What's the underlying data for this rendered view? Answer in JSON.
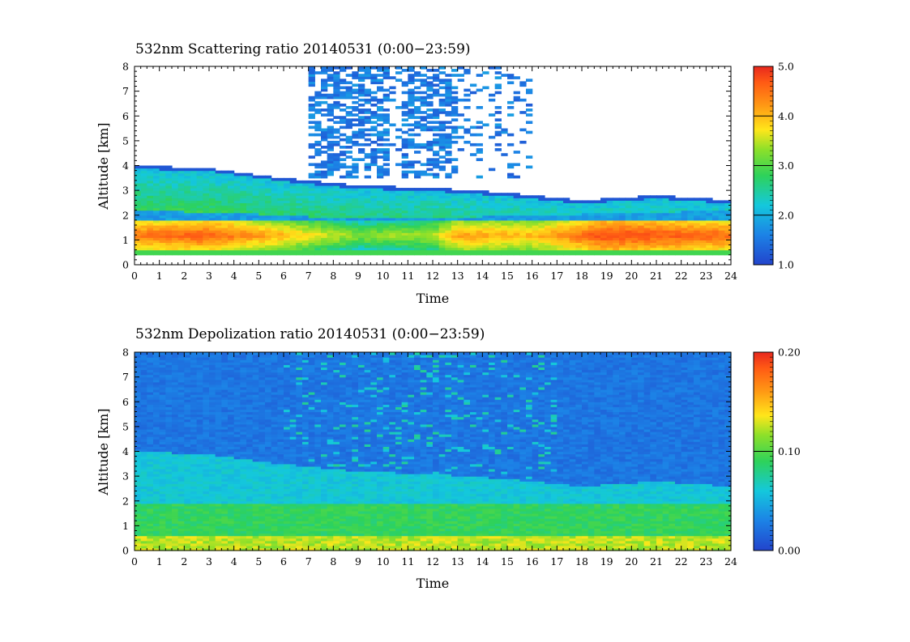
{
  "chart_data": [
    {
      "type": "heatmap",
      "title": "532nm Scattering ratio  20140531 (0:00−23:59)",
      "xlabel": "Time",
      "ylabel": "Altitude [km]",
      "xlim": [
        0,
        24
      ],
      "ylim": [
        0,
        8
      ],
      "x_ticks": [
        "0",
        "1",
        "2",
        "3",
        "4",
        "5",
        "6",
        "7",
        "8",
        "9",
        "10",
        "11",
        "12",
        "13",
        "14",
        "15",
        "16",
        "17",
        "18",
        "19",
        "20",
        "21",
        "22",
        "23",
        "24"
      ],
      "y_ticks": [
        "0",
        "1",
        "2",
        "3",
        "4",
        "5",
        "6",
        "7",
        "8"
      ],
      "colorbar": {
        "min": 1.0,
        "max": 5.0,
        "ticks": [
          "1.0",
          "2.0",
          "3.0",
          "4.0",
          "5.0"
        ]
      },
      "layers": [
        {
          "feature": "boundary layer top",
          "altitude_km_at_hours": {
            "0": 2.2,
            "4": 2.1,
            "8": 1.9,
            "12": 1.9,
            "16": 2.0,
            "20": 2.1,
            "24": 2.2
          },
          "value": 1.6
        },
        {
          "feature": "aerosol core",
          "altitude_km": [
            0.6,
            1.8
          ],
          "value_by_hour": {
            "0": 4.3,
            "3": 4.5,
            "6": 3.8,
            "9": 3.0,
            "12": 3.2,
            "13": 4.0,
            "16": 3.8,
            "19": 4.7,
            "22": 4.5,
            "24": 4.4
          }
        },
        {
          "feature": "elevated layer top",
          "altitude_km_at_hours": {
            "0": 4.0,
            "3": 3.9,
            "6": 3.5,
            "9": 3.2,
            "12": 3.1,
            "15": 2.9,
            "18": 2.6,
            "21": 2.8,
            "24": 2.6
          },
          "value": 2.1
        },
        {
          "feature": "scattered cloud signal",
          "hours": [
            7,
            16
          ],
          "altitude_km": [
            3.5,
            8
          ],
          "value": 1.4
        }
      ]
    },
    {
      "type": "heatmap",
      "title": "532nm Depolization ratio  20140531 (0:00−23:59)",
      "xlabel": "Time",
      "ylabel": "Altitude [km]",
      "xlim": [
        0,
        24
      ],
      "ylim": [
        0,
        8
      ],
      "x_ticks": [
        "0",
        "1",
        "2",
        "3",
        "4",
        "5",
        "6",
        "7",
        "8",
        "9",
        "10",
        "11",
        "12",
        "13",
        "14",
        "15",
        "16",
        "17",
        "18",
        "19",
        "20",
        "21",
        "22",
        "23",
        "24"
      ],
      "y_ticks": [
        "0",
        "1",
        "2",
        "3",
        "4",
        "5",
        "6",
        "7",
        "8"
      ],
      "colorbar": {
        "min": 0.0,
        "max": 0.2,
        "ticks": [
          "0.00",
          "0.10",
          "0.20"
        ]
      },
      "layers": [
        {
          "feature": "near surface",
          "altitude_km": [
            0,
            0.6
          ],
          "value": 0.11
        },
        {
          "feature": "boundary layer",
          "altitude_km": [
            0.6,
            1.9
          ],
          "value": 0.075
        },
        {
          "feature": "elevated layer",
          "altitude_km": [
            1.9,
            4.0
          ],
          "value": 0.05
        },
        {
          "feature": "free troposphere",
          "altitude_km": [
            4.0,
            8.0
          ],
          "value": 0.02
        }
      ]
    }
  ],
  "colors": {
    "scale": [
      "#2244cc",
      "#1c82e6",
      "#14c8dc",
      "#2ed25a",
      "#8ce02a",
      "#ffe61a",
      "#ff9a14",
      "#ff5a14",
      "#e8281e"
    ]
  }
}
